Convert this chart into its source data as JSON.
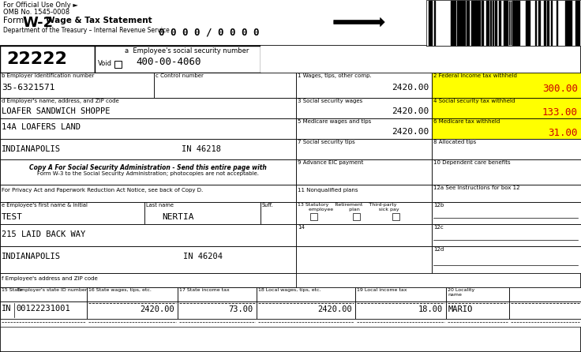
{
  "fig_width": 7.36,
  "fig_height": 4.46,
  "background_color": "#ffffff",
  "border_color": "#000000",
  "header": {
    "official_use": "For Official Use Only ►",
    "omb": "OMB No. 1545-0008",
    "form_w2": "W-2",
    "wage_tax": "Wage & Tax Statement",
    "dept": "Department of the Treasury – Internal Revenue Service",
    "copy_number": "0 0 0 0 / 0 0 0 0"
  },
  "box_a_num": "22222",
  "void_label": "Void",
  "ssn_label": "a  Employee's social security number",
  "ssn": "400-00-4060",
  "box_b_label": "b Employer identification number",
  "box_b_value": "35-6321571",
  "box_c_label": "c Control number",
  "box_d_label": "d Employer's name, address, and ZIP code",
  "box_d_line1": "LOAFER SANDWICH SHOPPE",
  "box_d_line2": "14A LOAFERS LAND",
  "box_d_city": "INDIANAPOLIS",
  "box_d_state": "IN 46218",
  "box1_label": "1 Wages, tips, other comp.",
  "box1_value": "2420.00",
  "box2_label": "2 Federal income tax withheld",
  "box2_value": "300.00",
  "box3_label": "3 Social security wages",
  "box3_value": "2420.00",
  "box4_label": "4 Social security tax withheld",
  "box4_value": "133.00",
  "box5_label": "5 Medicare wages and tips",
  "box5_value": "2420.00",
  "box6_label": "6 Medicare tax withheld",
  "box6_value": "31.00",
  "box7_label": "7 Social security tips",
  "box8_label": "8 Allocated tips",
  "box9_label": "9 Advance EIC payment",
  "box10_label": "10 Dependent care benefits",
  "box11_label": "11 Nonqualified plans",
  "box12a_label": "12a See instructions for box 12",
  "box12b_label": "12b",
  "box12c_label": "12c",
  "box12d_label": "12d",
  "box14_label": "14",
  "copy_text1": "Copy A For Social Security Administration - Send this entire page with",
  "copy_text2": "Form W-3 to the Social Security Administration; photocopies are not acceptable.",
  "privacy_text": "For Privacy Act and Paperwork Reduction Act Notice, see back of Copy D.",
  "emp_fn_label": "e Employee's first name & initial",
  "emp_ln_label": "Last name",
  "emp_suff_label": "Suff.",
  "emp_first": "TEST",
  "emp_last": "NERTIA",
  "address_line": "215 LAID BACK WAY",
  "city_line": "INDIANAPOLIS",
  "city_state": "IN 46204",
  "box_f_label": "f Employee's address and ZIP code",
  "box15_label": "15 State",
  "box15_label2": "Employer's state ID number",
  "box15_state": "IN",
  "box15_ein": "00122231001",
  "box16_label": "16 State wages, tips, etc.",
  "box16_value": "2420.00",
  "box17_label": "17 State income tax",
  "box17_value": "73.00",
  "box18_label": "18 Local wages, tips, etc.",
  "box18_value": "2420.00",
  "box19_label": "19 Local income tax",
  "box19_value": "18.00",
  "box20_label": "20 Locality\nname",
  "box20_value": "MARIO",
  "highlight_yellow": "#ffff00",
  "red_value_color": "#cc0000"
}
